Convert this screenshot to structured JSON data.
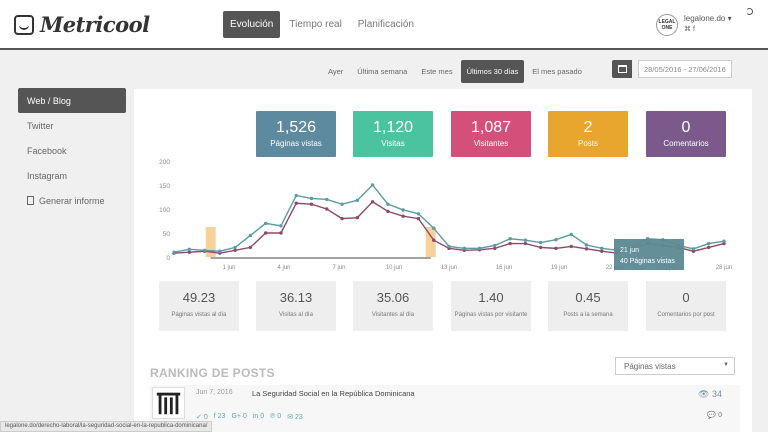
{
  "app": {
    "logo_text": "Metricool"
  },
  "main_tabs": [
    {
      "label": "Evolución",
      "active": true
    },
    {
      "label": "Tiempo real",
      "active": false
    },
    {
      "label": "Planificación",
      "active": false
    }
  ],
  "account": {
    "logo_text": "LEGAL ONE",
    "name": "legalone.do",
    "dropdown_icon": "caret-down",
    "social_icons": "rss-icon facebook-icon"
  },
  "periods": [
    {
      "label": "Ayer",
      "active": false
    },
    {
      "label": "Última semana",
      "active": false
    },
    {
      "label": "Este mes",
      "active": false
    },
    {
      "label": "Últimos 30 días",
      "active": true
    },
    {
      "label": "El mes pasado",
      "active": false
    }
  ],
  "date_range": "28/05/2016 - 27/06/2016",
  "sidebar": {
    "items": [
      {
        "label": "Web / Blog",
        "active": true
      },
      {
        "label": "Twitter",
        "active": false
      },
      {
        "label": "Facebook",
        "active": false
      },
      {
        "label": "Instagram",
        "active": false
      },
      {
        "label": "Generar informe",
        "active": false
      }
    ]
  },
  "kpis": [
    {
      "value": "1,526",
      "label": "Páginas vistas",
      "color": "#5d8a9e"
    },
    {
      "value": "1,120",
      "label": "Visitas",
      "color": "#4cc3a0"
    },
    {
      "value": "1,087",
      "label": "Visitantes",
      "color": "#d4507a"
    },
    {
      "value": "2",
      "label": "Posts",
      "color": "#e9a62f"
    },
    {
      "value": "0",
      "label": "Comentarios",
      "color": "#7b5a8b"
    }
  ],
  "chart_data": {
    "type": "line",
    "y_ticks": [
      "200",
      "150",
      "100",
      "50",
      "0"
    ],
    "ylim": [
      0,
      200
    ],
    "x_labels": [
      "1 jun",
      "4 jun",
      "7 jun",
      "10 jun",
      "13 jun",
      "16 jun",
      "19 jun",
      "22 jun",
      "25 jun",
      "28 jun"
    ],
    "series": [
      {
        "name": "Páginas vistas",
        "color": "#5d9aa5",
        "values": [
          10,
          16,
          14,
          12,
          20,
          45,
          70,
          65,
          128,
          122,
          120,
          110,
          118,
          150,
          110,
          98,
          90,
          60,
          22,
          18,
          18,
          24,
          38,
          35,
          30,
          36,
          47,
          25,
          18,
          14,
          22,
          38,
          36,
          24,
          17,
          28,
          33
        ]
      },
      {
        "name": "Visitas",
        "color": "#8e4a6a",
        "values": [
          8,
          10,
          12,
          8,
          14,
          20,
          50,
          50,
          112,
          110,
          100,
          80,
          82,
          115,
          95,
          85,
          80,
          35,
          18,
          14,
          15,
          18,
          28,
          28,
          20,
          18,
          22,
          17,
          12,
          8,
          18,
          28,
          24,
          20,
          12,
          20,
          28
        ]
      }
    ],
    "post_markers": [
      "30 may",
      "6 jun"
    ],
    "tooltip": {
      "date": "21 jun",
      "value": "40 Páginas vistas"
    }
  },
  "stats": [
    {
      "value": "49.23",
      "label": "Páginas vistas al día"
    },
    {
      "value": "36.13",
      "label": "Visitas al día"
    },
    {
      "value": "35.06",
      "label": "Visitantes al día"
    },
    {
      "value": "1.40",
      "label": "Páginas vistas por visitante"
    },
    {
      "value": "0.45",
      "label": "Posts a la semana"
    },
    {
      "value": "0",
      "label": "Comentarios por post"
    }
  ],
  "ranking": {
    "title": "RANKING DE POSTS",
    "sort_selected": "Páginas vistas",
    "posts": [
      {
        "date": "Jun 7, 2016",
        "title": "La Seguridad Social en la República Dominicana",
        "social": [
          "0",
          "23",
          "0",
          "0",
          "0",
          "23"
        ],
        "views": "34",
        "comments": "0"
      }
    ]
  },
  "statusbar": "legalone.do/derecho-laboral/la-seguridad-social-en-la-republica-dominicana/"
}
